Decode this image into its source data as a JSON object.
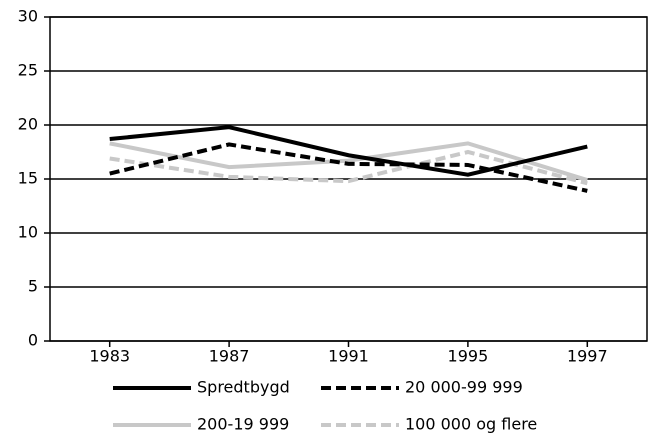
{
  "chart_data": {
    "type": "line",
    "categories": [
      "1983",
      "1987",
      "1991",
      "1995",
      "1997"
    ],
    "series": [
      {
        "name": "Spredtbygd",
        "color": "#000000",
        "dashed": false,
        "values": [
          18.7,
          19.8,
          17.2,
          15.4,
          18.0
        ]
      },
      {
        "name": "20 000-99 999",
        "color": "#000000",
        "dashed": true,
        "values": [
          15.5,
          18.2,
          16.4,
          16.3,
          13.9
        ]
      },
      {
        "name": "200-19 999",
        "color": "#c8c8c8",
        "dashed": false,
        "values": [
          18.3,
          16.1,
          16.7,
          18.3,
          14.9
        ]
      },
      {
        "name": "100 000 og flere",
        "color": "#c8c8c8",
        "dashed": true,
        "values": [
          16.9,
          15.2,
          14.8,
          17.5,
          14.6
        ]
      }
    ],
    "ylim": [
      0,
      30
    ],
    "yticks": [
      0,
      5,
      10,
      15,
      20,
      25,
      30
    ],
    "grid": true,
    "legend": "bottom"
  }
}
